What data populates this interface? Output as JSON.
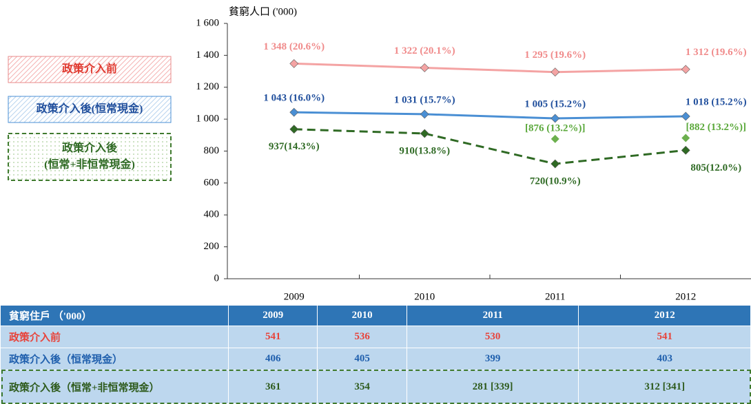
{
  "chart_data": {
    "type": "line",
    "y_label": "貧窮人口 ('000)",
    "categories": [
      "2009",
      "2010",
      "2011",
      "2012"
    ],
    "ylim": [
      0,
      1600
    ],
    "yticks": [
      0,
      200,
      400,
      600,
      800,
      {
        "value": 1000,
        "label": "1 000"
      },
      {
        "value": 1200,
        "label": "1 200"
      },
      {
        "value": 1400,
        "label": "1 400"
      },
      {
        "value": 1600,
        "label": "1 600"
      }
    ],
    "grid": false,
    "series": [
      {
        "name": "政策介入前",
        "color": "#f4a3a3",
        "label_color": "#f08a8a",
        "legend_color": "#e0392f",
        "values": [
          1348,
          1322,
          1295,
          1312
        ],
        "value_labels": [
          "1 348 (20.6%)",
          "1 322 (20.1%)",
          "1 295 (19.6%)",
          "1 312 (19.6%)"
        ]
      },
      {
        "name": "政策介入後(恒常現金)",
        "color": "#4a8fd4",
        "label_color": "#1f4e9c",
        "legend_color": "#1f4e9c",
        "values": [
          1043,
          1031,
          1005,
          1018
        ],
        "value_labels": [
          "1 043 (16.0%)",
          "1 031 (15.7%)",
          "1 005 (15.2%)",
          "1 018 (15.2%)"
        ]
      },
      {
        "name": "政策介入後\n(恒常+非恒常現金)",
        "color": "#2f6a24",
        "label_color": "#2f6a24",
        "legend_color": "#2f6a24",
        "dashed": true,
        "values": [
          937,
          910,
          720,
          805
        ],
        "value_labels": [
          "937(14.3%)",
          "910(13.8%)",
          "720(10.9%)",
          "805(12.0%)"
        ]
      },
      {
        "color": "#6cb04e",
        "label_color": "#5aa83a",
        "markers_only": true,
        "values": [
          null,
          null,
          876,
          882
        ],
        "value_labels": [
          null,
          null,
          "[876 (13.2%)]",
          "[882 (13.2%)]"
        ]
      }
    ]
  },
  "table": {
    "header": [
      "貧窮住戶 （'000）",
      "2009",
      "2010",
      "2011",
      "2012"
    ],
    "rows": [
      [
        "政策介入前",
        "541",
        "536",
        "530",
        "541"
      ],
      [
        "政策介入後（恒常現金）",
        "406",
        "405",
        "399",
        "403"
      ],
      [
        "政策介入後（恒常+非恒常現金）",
        "361",
        "354",
        "281 [339]",
        "312 [341]"
      ]
    ]
  }
}
